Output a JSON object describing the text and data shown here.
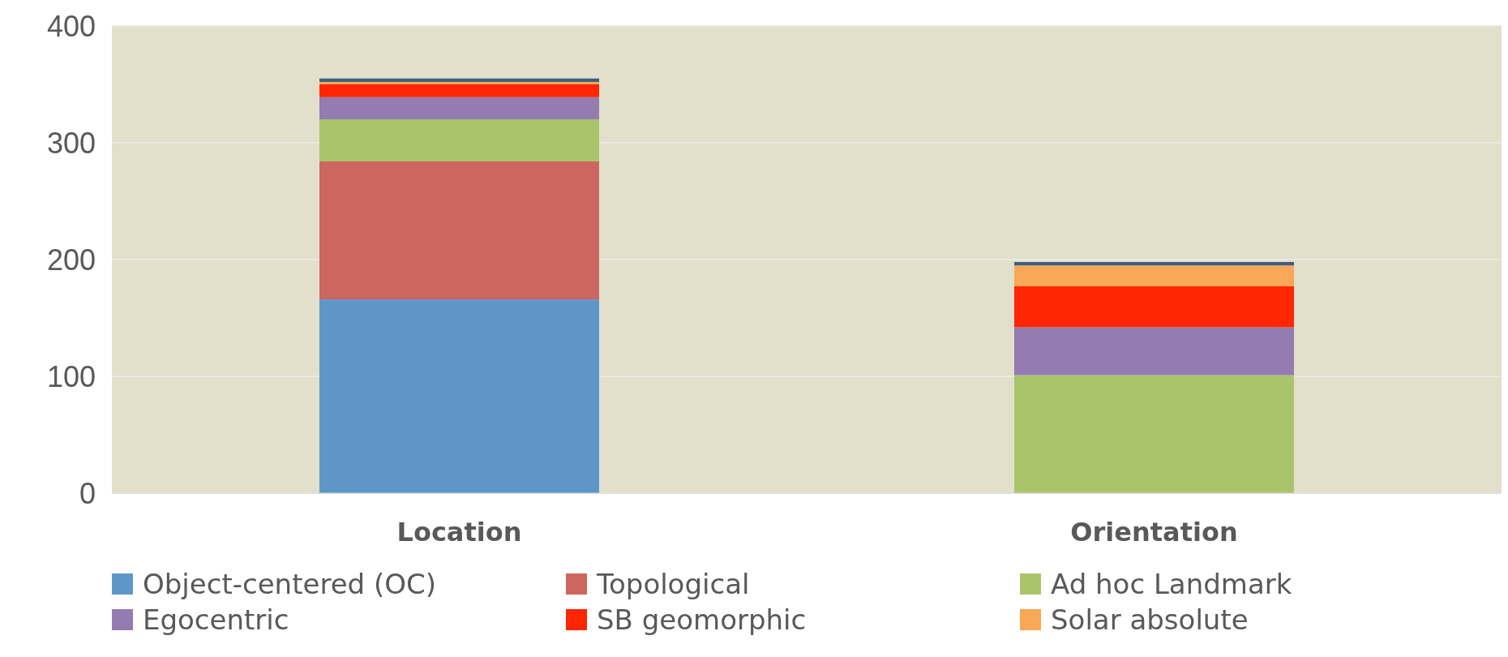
{
  "chart_data": {
    "type": "bar",
    "stacked": true,
    "categories": [
      "Location",
      "Orientation"
    ],
    "series": [
      {
        "name": "Object-centered (OC)",
        "color": "#5f96c8",
        "values": [
          166,
          0
        ]
      },
      {
        "name": "Topological",
        "color": "#cd665f",
        "values": [
          118,
          0
        ]
      },
      {
        "name": "Ad hoc Landmark",
        "color": "#aac46c",
        "values": [
          36,
          101
        ]
      },
      {
        "name": "Egocentric",
        "color": "#947bb0",
        "values": [
          19,
          41
        ]
      },
      {
        "name": "SB geomorphic",
        "color": "#ff2600",
        "values": [
          11,
          35
        ]
      },
      {
        "name": "Solar absolute",
        "color": "#f9a857",
        "values": [
          2,
          18
        ]
      },
      {
        "color": "#3c6083",
        "values": [
          3,
          3
        ]
      }
    ],
    "ylim": [
      0,
      400
    ],
    "yticks": [
      0,
      100,
      200,
      300,
      400
    ],
    "grid": "y",
    "legend": "bottom"
  }
}
